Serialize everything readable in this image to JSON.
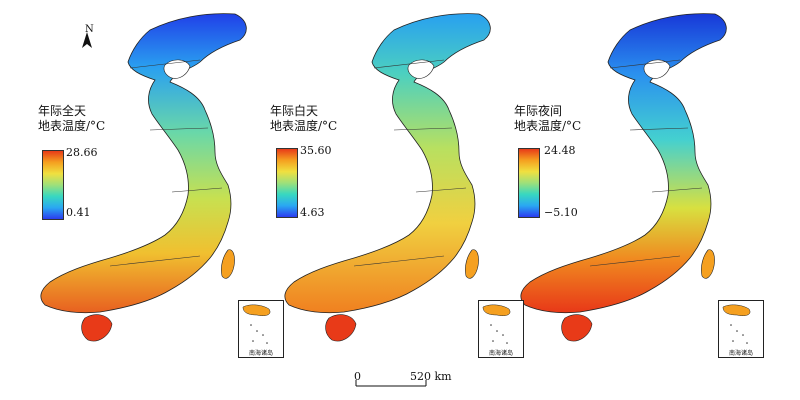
{
  "compass": {
    "label": "N"
  },
  "panels": [
    {
      "title_line1": "年际全天",
      "title_line2": "地表温度/°C",
      "max": "28.66",
      "min": "0.41",
      "ramp": [
        "#2b3cf0",
        "#2aa8f2",
        "#38d8c0",
        "#9ee07a",
        "#f0e040",
        "#f5a020",
        "#e83a18"
      ]
    },
    {
      "title_line1": "年际白天",
      "title_line2": "地表温度/°C",
      "max": "35.60",
      "min": "4.63",
      "ramp": [
        "#2b3cf0",
        "#2aa8f2",
        "#38d8c0",
        "#9ee07a",
        "#f0e040",
        "#f5a020",
        "#e83a18"
      ]
    },
    {
      "title_line1": "年际夜间",
      "title_line2": "地表温度/°C",
      "max": "24.48",
      "min": "−5.10",
      "ramp": [
        "#2b3cf0",
        "#2aa8f2",
        "#38d8c0",
        "#9ee07a",
        "#f0e040",
        "#f5a020",
        "#e83a18"
      ]
    }
  ],
  "inset_label": "南海诸岛",
  "scale": {
    "zero": "0",
    "end": "520 km"
  }
}
